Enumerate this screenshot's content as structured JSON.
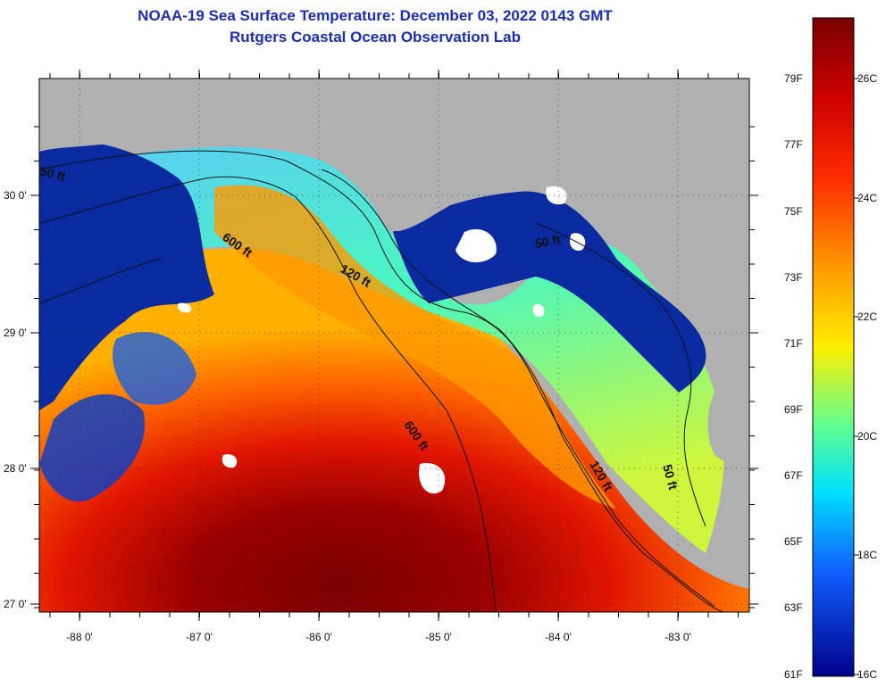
{
  "header": {
    "title": "NOAA-19 Sea Surface Temperature:  December 03, 2022 0143 GMT",
    "subtitle": "Rutgers Coastal Ocean Observation Lab"
  },
  "map": {
    "lon_ticks": [
      "-88 0'",
      "-87 0'",
      "-86 0'",
      "-85 0'",
      "-84 0'",
      "-83 0'"
    ],
    "lat_ticks": [
      "30 0'",
      "29 0'",
      "28 0'",
      "27 0'"
    ],
    "contours": [
      "50 ft",
      "600 ft",
      "120 ft",
      "50 ft",
      "600 ft",
      "120 ft",
      "50 ft"
    ],
    "land_color": "#b0b0b0",
    "cloud_color": "#ffffff"
  },
  "colorbar": {
    "f_labels": [
      "79F",
      "77F",
      "75F",
      "73F",
      "71F",
      "69F",
      "67F",
      "65F",
      "63F",
      "61F"
    ],
    "c_labels": [
      "26C",
      "24C",
      "22C",
      "20C",
      "18C",
      "16C"
    ]
  }
}
